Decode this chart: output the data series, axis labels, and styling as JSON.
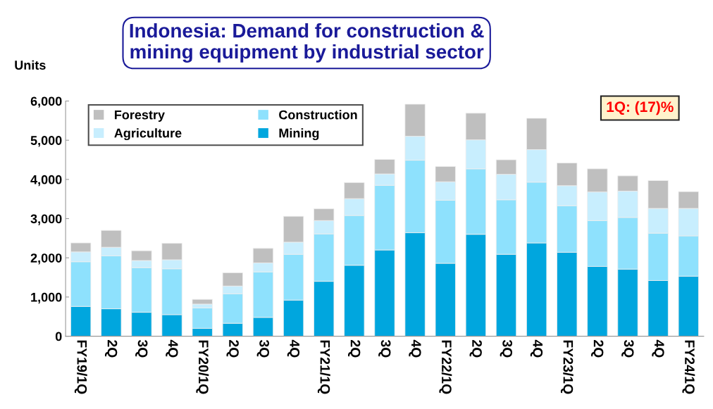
{
  "chart_data": {
    "type": "bar",
    "title": "Indonesia: Demand for construction &\nmining equipment by industrial sector",
    "ylabel": "Units",
    "categories": [
      "FY19/1Q",
      "2Q",
      "3Q",
      "4Q",
      "FY20/1Q",
      "2Q",
      "3Q",
      "4Q",
      "FY21/1Q",
      "2Q",
      "3Q",
      "4Q",
      "FY22/1Q",
      "2Q",
      "3Q",
      "4Q",
      "FY23/1Q",
      "2Q",
      "3Q",
      "4Q",
      "FY24/1Q"
    ],
    "stacked": true,
    "series": [
      {
        "name": "Mining",
        "color": "#00a6de",
        "values": [
          760,
          700,
          610,
          550,
          200,
          330,
          480,
          920,
          1400,
          1810,
          2200,
          2640,
          1860,
          2600,
          2090,
          2380,
          2140,
          1780,
          1710,
          1420,
          1530
        ]
      },
      {
        "name": "Construction",
        "color": "#8ee1fd",
        "values": [
          1140,
          1350,
          1140,
          1170,
          520,
          750,
          1160,
          1170,
          1210,
          1270,
          1650,
          1850,
          1610,
          1670,
          1390,
          1550,
          1190,
          1170,
          1320,
          1210,
          1030
        ]
      },
      {
        "name": "Agriculture",
        "color": "#c8eefe",
        "values": [
          250,
          220,
          180,
          230,
          100,
          200,
          230,
          310,
          340,
          430,
          290,
          610,
          470,
          740,
          650,
          830,
          510,
          730,
          670,
          630,
          700
        ]
      },
      {
        "name": "Forestry",
        "color": "#bfbfbf",
        "values": [
          230,
          430,
          250,
          420,
          120,
          340,
          370,
          660,
          300,
          410,
          370,
          820,
          390,
          680,
          370,
          800,
          580,
          590,
          390,
          710,
          430
        ]
      }
    ],
    "ylim": [
      0,
      6000
    ],
    "yticks": [
      {
        "value": 0,
        "label": "0"
      },
      {
        "value": 1000,
        "label": "1,000"
      },
      {
        "value": 2000,
        "label": "2,000"
      },
      {
        "value": 3000,
        "label": "3,000"
      },
      {
        "value": 4000,
        "label": "4,000"
      },
      {
        "value": 5000,
        "label": "5,000"
      },
      {
        "value": 6000,
        "label": "6,000"
      }
    ],
    "grid": false,
    "legend": "top left",
    "annotations": [
      "1Q: (17)%"
    ]
  }
}
